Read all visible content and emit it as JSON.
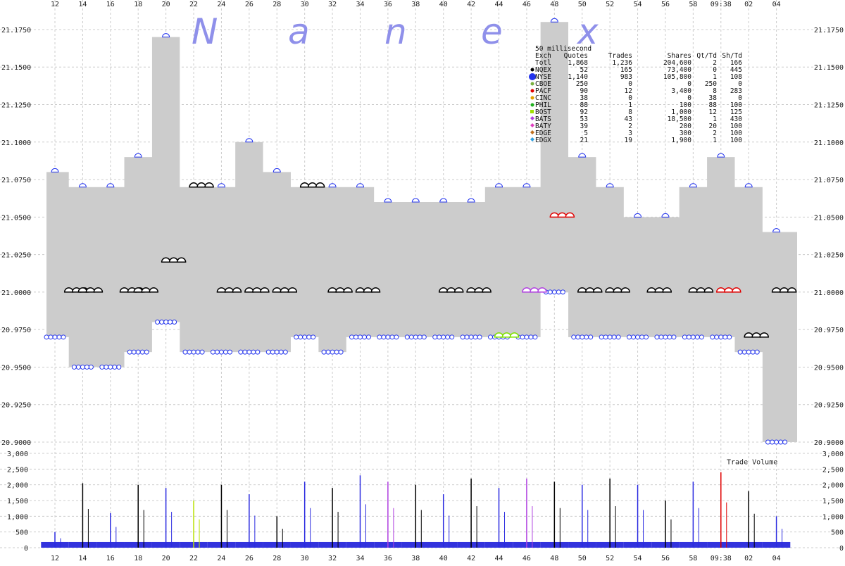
{
  "watermark": [
    "N",
    "a",
    "n",
    "e",
    "x"
  ],
  "chart_data": [
    {
      "type": "area",
      "name": "quote-spread",
      "x_ticks": [
        "12",
        "14",
        "16",
        "18",
        "20",
        "22",
        "24",
        "26",
        "28",
        "30",
        "32",
        "34",
        "36",
        "38",
        "40",
        "42",
        "44",
        "46",
        "48",
        "50",
        "52",
        "54",
        "56",
        "58",
        "09:38",
        "02",
        "04"
      ],
      "y_ticks": [
        "21.1750",
        "21.1500",
        "21.1250",
        "21.1000",
        "21.0750",
        "21.0500",
        "21.0250",
        "21.0000",
        "20.9750",
        "20.9500",
        "20.9250",
        "20.9000"
      ],
      "ylim": [
        20.9,
        21.19
      ],
      "grid": true,
      "bid_ask_envelope": {
        "x": [
          "12",
          "14",
          "16",
          "18",
          "20",
          "22",
          "24",
          "26",
          "28",
          "30",
          "32",
          "34",
          "36",
          "38",
          "40",
          "42",
          "44",
          "46",
          "48",
          "50",
          "52",
          "54",
          "56",
          "58",
          "09:38",
          "02",
          "04"
        ],
        "low": [
          20.97,
          20.95,
          20.95,
          20.96,
          20.98,
          20.96,
          20.96,
          20.96,
          20.96,
          20.97,
          20.96,
          20.97,
          20.97,
          20.97,
          20.97,
          20.97,
          20.97,
          20.97,
          21.0,
          20.97,
          20.97,
          20.97,
          20.97,
          20.97,
          20.97,
          20.96,
          20.9
        ],
        "high": [
          21.08,
          21.07,
          21.07,
          21.09,
          21.17,
          21.07,
          21.07,
          21.1,
          21.08,
          21.07,
          21.07,
          21.07,
          21.06,
          21.06,
          21.06,
          21.06,
          21.07,
          21.07,
          21.18,
          21.09,
          21.07,
          21.05,
          21.05,
          21.07,
          21.09,
          21.07,
          21.04
        ]
      },
      "trade_points": [
        {
          "x": "13",
          "y": 21.0,
          "color": "#000000"
        },
        {
          "x": "14",
          "y": 21.0,
          "color": "#000000"
        },
        {
          "x": "17",
          "y": 21.0,
          "color": "#000000"
        },
        {
          "x": "18",
          "y": 21.0,
          "color": "#000000"
        },
        {
          "x": "20",
          "y": 21.02,
          "color": "#000000"
        },
        {
          "x": "22",
          "y": 21.07,
          "color": "#000000"
        },
        {
          "x": "24",
          "y": 21.0,
          "color": "#000000"
        },
        {
          "x": "26",
          "y": 21.0,
          "color": "#000000"
        },
        {
          "x": "28",
          "y": 21.0,
          "color": "#000000"
        },
        {
          "x": "30",
          "y": 21.07,
          "color": "#000000"
        },
        {
          "x": "32",
          "y": 21.0,
          "color": "#000000"
        },
        {
          "x": "34",
          "y": 21.0,
          "color": "#000000"
        },
        {
          "x": "40",
          "y": 21.0,
          "color": "#000000"
        },
        {
          "x": "42",
          "y": 21.0,
          "color": "#000000"
        },
        {
          "x": "44",
          "y": 20.97,
          "color": "#7fe000"
        },
        {
          "x": "46",
          "y": 21.0,
          "color": "#b040e0"
        },
        {
          "x": "48",
          "y": 21.05,
          "color": "#e00000"
        },
        {
          "x": "50",
          "y": 21.0,
          "color": "#000000"
        },
        {
          "x": "52",
          "y": 21.0,
          "color": "#000000"
        },
        {
          "x": "55",
          "y": 21.0,
          "color": "#000000"
        },
        {
          "x": "58",
          "y": 21.0,
          "color": "#000000"
        },
        {
          "x": "09:38",
          "y": 21.0,
          "color": "#e00000"
        },
        {
          "x": "02",
          "y": 20.97,
          "color": "#000000"
        },
        {
          "x": "04",
          "y": 21.0,
          "color": "#000000"
        }
      ]
    },
    {
      "type": "bar",
      "name": "trade-volume",
      "title": "Trade Volume",
      "y_ticks": [
        "3,000",
        "2,500",
        "2,000",
        "1,500",
        "1,000",
        "500",
        "0"
      ],
      "ylim": [
        0,
        3000
      ],
      "grid": true,
      "x": [
        "12",
        "14",
        "16",
        "18",
        "20",
        "22",
        "24",
        "26",
        "28",
        "30",
        "32",
        "34",
        "36",
        "38",
        "40",
        "42",
        "44",
        "46",
        "48",
        "50",
        "52",
        "54",
        "56",
        "58",
        "09:38",
        "02",
        "04"
      ],
      "values": [
        500,
        2050,
        1100,
        2000,
        1900,
        1500,
        2000,
        1700,
        1000,
        2100,
        1900,
        2300,
        2100,
        2000,
        1700,
        2200,
        1900,
        2200,
        2100,
        2000,
        2200,
        2000,
        1500,
        2100,
        2400,
        1800,
        1000
      ],
      "colors": [
        "#2a2ae0",
        "#000000",
        "#2a2ae0",
        "#000000",
        "#2a2ae0",
        "#b8e000",
        "#000000",
        "#2a2ae0",
        "#000000",
        "#2a2ae0",
        "#000000",
        "#2a2ae0",
        "#b040e0",
        "#000000",
        "#2a2ae0",
        "#000000",
        "#2a2ae0",
        "#b040e0",
        "#000000",
        "#2a2ae0",
        "#000000",
        "#2a2ae0",
        "#000000",
        "#2a2ae0",
        "#e00000",
        "#000000",
        "#2a2ae0"
      ]
    }
  ],
  "legend": {
    "caption": "50 millisecond",
    "headers": [
      "Exch",
      "Quotes",
      "Trades",
      "Shares",
      "Qt/Td",
      "Sh/Td"
    ],
    "rows": [
      {
        "exch": "Totl",
        "quotes": "1,868",
        "trades": "1,236",
        "shares": "204,600",
        "qt_td": "2",
        "sh_td": "166",
        "color": "",
        "symbol": "none"
      },
      {
        "exch": "NQEX",
        "quotes": "52",
        "trades": "165",
        "shares": "73,400",
        "qt_td": "0",
        "sh_td": "445",
        "color": "#000000",
        "symbol": "circle"
      },
      {
        "exch": "NYSE",
        "quotes": "1,140",
        "trades": "983",
        "shares": "105,800",
        "qt_td": "1",
        "sh_td": "108",
        "color": "#2233ee",
        "symbol": "big-circle"
      },
      {
        "exch": "CBOE",
        "quotes": "250",
        "trades": "0",
        "shares": "0",
        "qt_td": "250",
        "sh_td": "0",
        "color": "#7ab040",
        "symbol": "circle"
      },
      {
        "exch": "PACF",
        "quotes": "90",
        "trades": "12",
        "shares": "3,400",
        "qt_td": "8",
        "sh_td": "283",
        "color": "#e00000",
        "symbol": "circle"
      },
      {
        "exch": "CINC",
        "quotes": "38",
        "trades": "0",
        "shares": "0",
        "qt_td": "38",
        "sh_td": "0",
        "color": "#e0a000",
        "symbol": "circle"
      },
      {
        "exch": "PHIL",
        "quotes": "88",
        "trades": "1",
        "shares": "100",
        "qt_td": "88",
        "sh_td": "100",
        "color": "#20b020",
        "symbol": "circle"
      },
      {
        "exch": "BOST",
        "quotes": "92",
        "trades": "8",
        "shares": "1,000",
        "qt_td": "12",
        "sh_td": "125",
        "color": "#a0e000",
        "symbol": "square"
      },
      {
        "exch": "BATS",
        "quotes": "53",
        "trades": "43",
        "shares": "18,500",
        "qt_td": "1",
        "sh_td": "430",
        "color": "#b040e0",
        "symbol": "diamond"
      },
      {
        "exch": "BATY",
        "quotes": "39",
        "trades": "2",
        "shares": "200",
        "qt_td": "20",
        "sh_td": "100",
        "color": "#e040c0",
        "symbol": "diamond"
      },
      {
        "exch": "EDGE",
        "quotes": "5",
        "trades": "3",
        "shares": "300",
        "qt_td": "2",
        "sh_td": "100",
        "color": "#c07020",
        "symbol": "diamond"
      },
      {
        "exch": "EDGX",
        "quotes": "21",
        "trades": "19",
        "shares": "1,900",
        "qt_td": "1",
        "sh_td": "100",
        "color": "#30a0e0",
        "symbol": "diamond"
      }
    ]
  }
}
